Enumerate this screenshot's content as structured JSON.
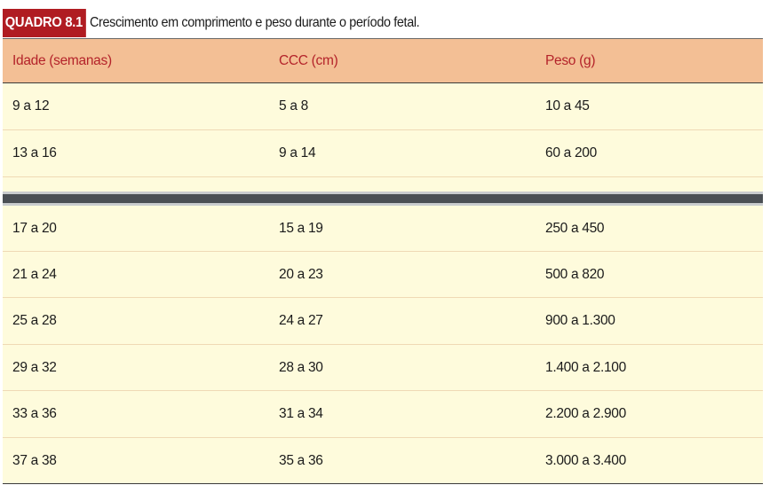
{
  "caption": {
    "badge": "QUADRO 8.1",
    "title": "Crescimento em comprimento e peso durante o período fetal."
  },
  "table": {
    "headers": [
      "Idade (semanas)",
      "CCC (cm)",
      "Peso (g)"
    ],
    "rows_top": [
      [
        "9 a 12",
        "5 a 8",
        "10 a 45"
      ],
      [
        "13 a 16",
        "9 a 14",
        "60 a 200"
      ]
    ],
    "rows_bottom": [
      [
        "17 a 20",
        "15 a 19",
        "250 a 450"
      ],
      [
        "21 a 24",
        "20 a 23",
        "500 a 820"
      ],
      [
        "25 a 28",
        "24 a 27",
        "900 a 1.300"
      ],
      [
        "29 a 32",
        "28 a 30",
        "1.400 a 2.100"
      ],
      [
        "33 a 36",
        "31 a 34",
        "2.200 a 2.900"
      ],
      [
        "37 a 38",
        "35 a 36",
        "3.000 a 3.400"
      ]
    ]
  },
  "colors": {
    "badge": "#b01c22",
    "header_bg": "#f3bf95",
    "header_text": "#b4232a",
    "row_bg": "#fefbdc",
    "page_break": "#4a4f54"
  }
}
